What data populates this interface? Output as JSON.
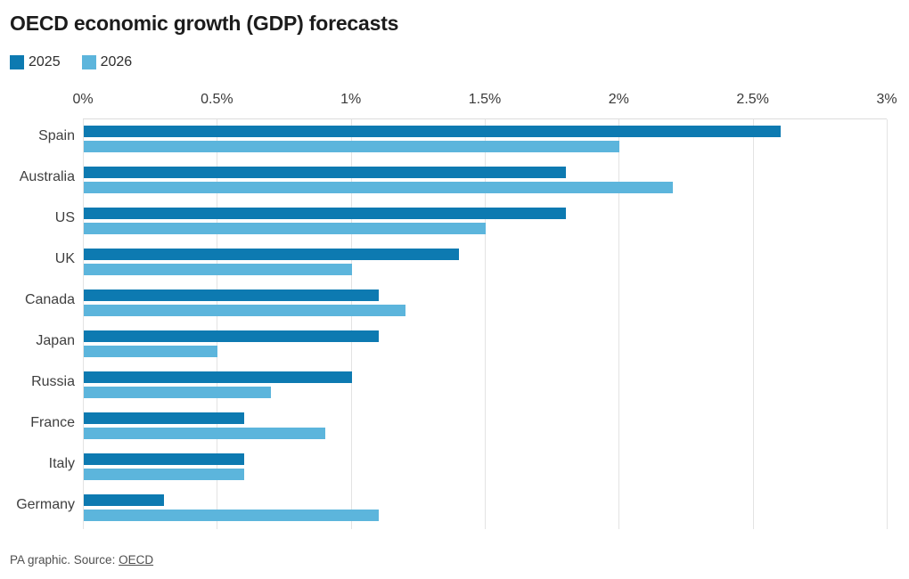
{
  "title": "OECD economic growth (GDP) forecasts",
  "legend": {
    "items": [
      {
        "label": "2025"
      },
      {
        "label": "2026"
      }
    ]
  },
  "source": {
    "prefix": "PA graphic. Source: ",
    "link_text": "OECD"
  },
  "colors": {
    "series_2025": "#0d7ab1",
    "series_2026": "#5cb5dc",
    "gridline": "#e3e3e3",
    "title_text": "#1c1c1c",
    "label_text": "#3f3f3f",
    "source_text": "#4f4f4f",
    "background": "#ffffff"
  },
  "chart_data": {
    "type": "bar",
    "orientation": "horizontal",
    "title": "OECD economic growth (GDP) forecasts",
    "unit": "%",
    "categories": [
      "Spain",
      "Australia",
      "US",
      "UK",
      "Canada",
      "Japan",
      "Russia",
      "France",
      "Italy",
      "Germany"
    ],
    "series": [
      {
        "name": "2025",
        "color": "#0d7ab1",
        "values": [
          2.6,
          1.8,
          1.8,
          1.4,
          1.1,
          1.1,
          1.0,
          0.6,
          0.6,
          0.3
        ]
      },
      {
        "name": "2026",
        "color": "#5cb5dc",
        "values": [
          2.0,
          2.2,
          1.5,
          1.0,
          1.2,
          0.5,
          0.7,
          0.9,
          0.6,
          1.1
        ]
      }
    ],
    "x_ticks": [
      "0%",
      "0.5%",
      "1%",
      "1.5%",
      "2%",
      "2.5%",
      "3%"
    ],
    "xlim": [
      0,
      3
    ],
    "grid": true,
    "legend_position": "top-left"
  }
}
